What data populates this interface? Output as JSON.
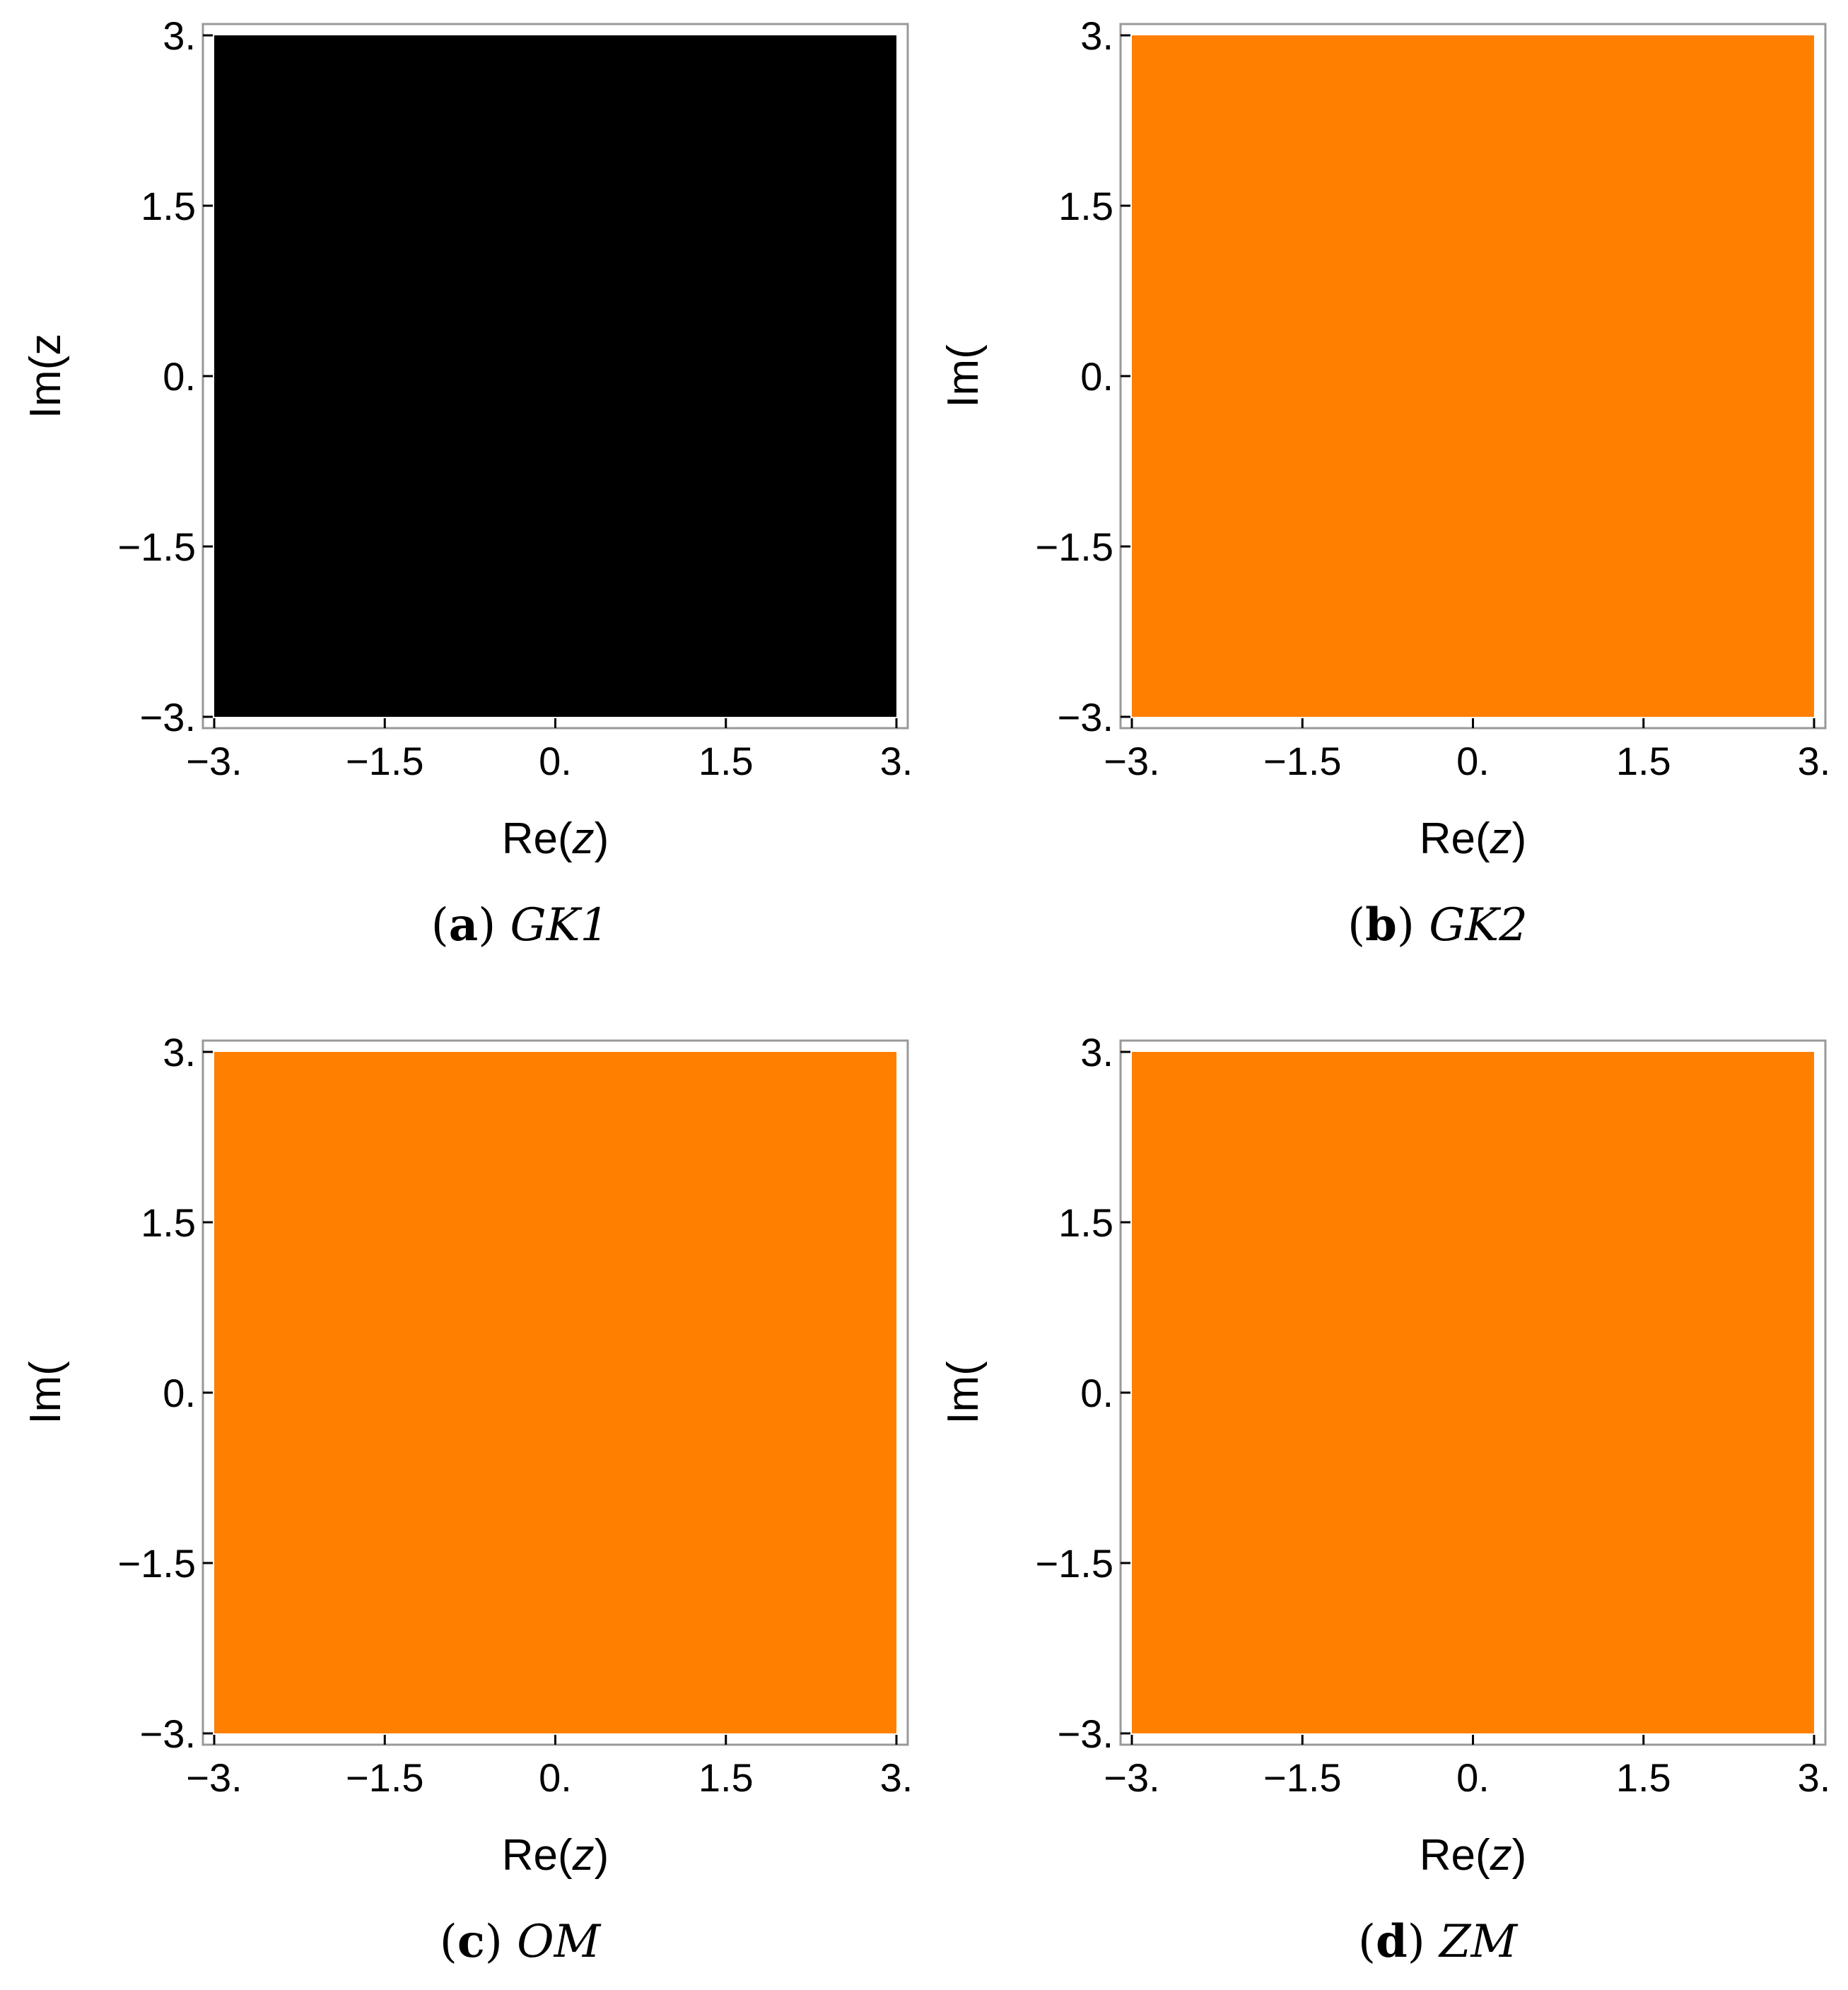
{
  "chart_data": [
    {
      "type": "heatmap",
      "caption": {
        "letter": "a",
        "name": "GK1"
      },
      "xlabel": {
        "prefix": "Re(",
        "var": "z",
        "suffix": ")"
      },
      "ylabel": {
        "prefix": "Im(z",
        "var": "",
        "suffix": ""
      },
      "xlim": [
        -3,
        3
      ],
      "ylim": [
        -3,
        3
      ],
      "x_ticks": [
        "−3.",
        "−1.5",
        "0.",
        "1.5",
        "3."
      ],
      "y_ticks": [
        "−3.",
        "−1.5",
        "0.",
        "1.5",
        "3."
      ],
      "x_tick_values": [
        -3,
        -1.5,
        0,
        1.5,
        3
      ],
      "y_tick_values": [
        -3,
        -1.5,
        0,
        1.5,
        3
      ],
      "region_color": "#000000"
    },
    {
      "type": "heatmap",
      "caption": {
        "letter": "b",
        "name": "GK2"
      },
      "xlabel": {
        "prefix": "Re(",
        "var": "z",
        "suffix": ")"
      },
      "ylabel": {
        "prefix": "Im(",
        "var": "",
        "suffix": ""
      },
      "xlim": [
        -3,
        3
      ],
      "ylim": [
        -3,
        3
      ],
      "x_ticks": [
        "−3.",
        "−1.5",
        "0.",
        "1.5",
        "3."
      ],
      "y_ticks": [
        "−3.",
        "−1.5",
        "0.",
        "1.5",
        "3."
      ],
      "x_tick_values": [
        -3,
        -1.5,
        0,
        1.5,
        3
      ],
      "y_tick_values": [
        -3,
        -1.5,
        0,
        1.5,
        3
      ],
      "region_color": "#ff7f00"
    },
    {
      "type": "heatmap",
      "caption": {
        "letter": "c",
        "name": "OM"
      },
      "xlabel": {
        "prefix": "Re(",
        "var": "z",
        "suffix": ")"
      },
      "ylabel": {
        "prefix": "Im(",
        "var": "",
        "suffix": ""
      },
      "xlim": [
        -3,
        3
      ],
      "ylim": [
        -3,
        3
      ],
      "x_ticks": [
        "−3.",
        "−1.5",
        "0.",
        "1.5",
        "3."
      ],
      "y_ticks": [
        "−3.",
        "−1.5",
        "0.",
        "1.5",
        "3."
      ],
      "x_tick_values": [
        -3,
        -1.5,
        0,
        1.5,
        3
      ],
      "y_tick_values": [
        -3,
        -1.5,
        0,
        1.5,
        3
      ],
      "region_color": "#ff7f00"
    },
    {
      "type": "heatmap",
      "caption": {
        "letter": "d",
        "name": "ZM"
      },
      "xlabel": {
        "prefix": "Re(",
        "var": "z",
        "suffix": ")"
      },
      "ylabel": {
        "prefix": "Im(",
        "var": "",
        "suffix": ""
      },
      "xlim": [
        -3,
        3
      ],
      "ylim": [
        -3,
        3
      ],
      "x_ticks": [
        "−3.",
        "−1.5",
        "0.",
        "1.5",
        "3."
      ],
      "y_ticks": [
        "−3.",
        "−1.5",
        "0.",
        "1.5",
        "3."
      ],
      "x_tick_values": [
        -3,
        -1.5,
        0,
        1.5,
        3
      ],
      "y_tick_values": [
        -3,
        -1.5,
        0,
        1.5,
        3
      ],
      "region_color": "#ff7f00"
    }
  ],
  "colors": {
    "frame": "#999999",
    "tick": "#000000",
    "text": "#000000"
  }
}
